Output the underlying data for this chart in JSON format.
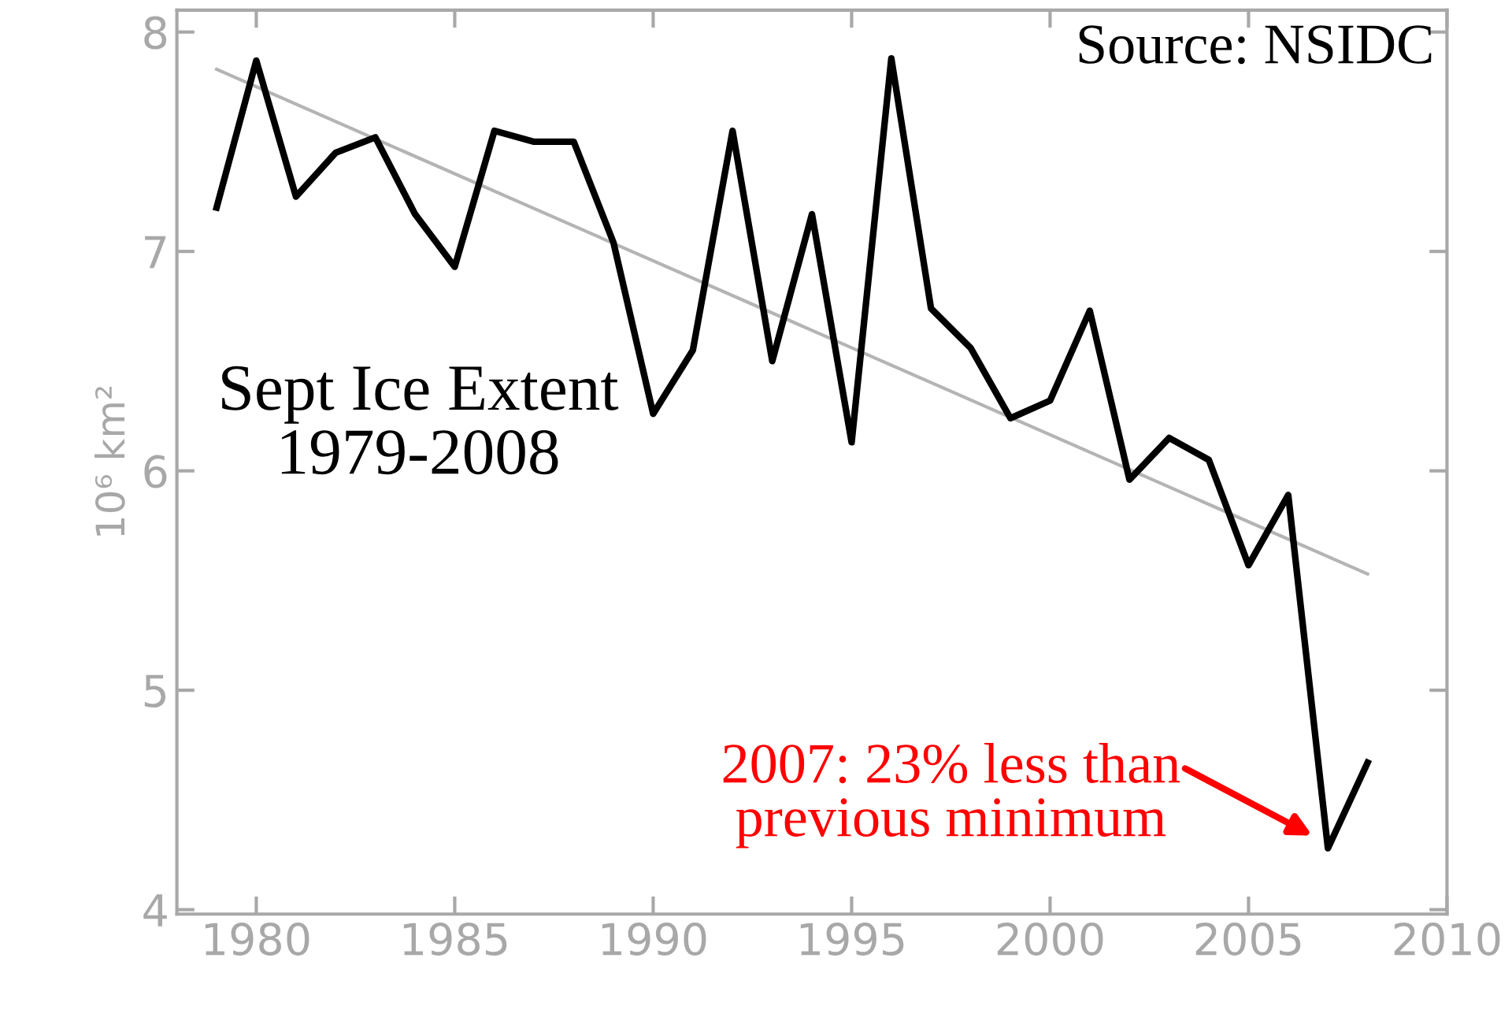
{
  "chart_data": {
    "type": "line",
    "title": "Sept Ice Extent\n1979-2008",
    "ylabel": "10⁶ km²",
    "x": [
      1979,
      1980,
      1981,
      1982,
      1983,
      1984,
      1985,
      1986,
      1987,
      1988,
      1989,
      1990,
      1991,
      1992,
      1993,
      1994,
      1995,
      1996,
      1997,
      1998,
      1999,
      2000,
      2001,
      2002,
      2003,
      2004,
      2005,
      2006,
      2007,
      2008
    ],
    "series": [
      {
        "color": "#000000",
        "values": [
          7.2,
          7.87,
          7.25,
          7.45,
          7.52,
          7.17,
          6.93,
          7.55,
          7.5,
          7.5,
          7.04,
          6.26,
          6.55,
          7.55,
          6.5,
          7.17,
          6.13,
          7.88,
          6.74,
          6.56,
          6.24,
          6.32,
          6.73,
          5.96,
          6.15,
          6.05,
          5.57,
          5.89,
          4.28,
          4.67
        ]
      },
      {
        "type": "line",
        "color": "#b4b4b4",
        "x": [
          1979,
          2008
        ],
        "values": [
          7.83,
          5.53
        ]
      }
    ],
    "xlim": [
      1978,
      2010
    ],
    "xticks": [
      1980,
      1985,
      1990,
      1995,
      2000,
      2005,
      2010
    ],
    "ylim": [
      3.98,
      8.1
    ],
    "yticks": [
      4,
      5,
      6,
      7,
      8
    ],
    "annotations": [
      {
        "text": "Source: NSIDC"
      },
      {
        "text": "2007: 23% less than\nprevious minimum",
        "x": 2007,
        "y": 4.3
      }
    ],
    "grid": false,
    "legend": false,
    "marker": "none"
  }
}
